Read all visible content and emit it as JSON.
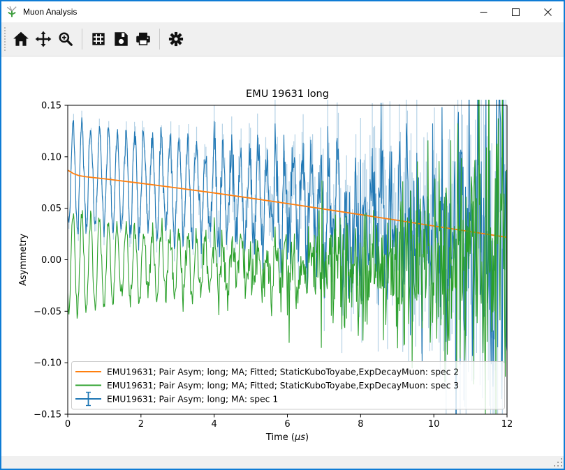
{
  "window": {
    "title": "Muon Analysis",
    "controls": {
      "minimize": "minimize",
      "maximize": "maximize",
      "close": "close"
    }
  },
  "toolbar": {
    "buttons": [
      "home",
      "pan",
      "zoom",
      "subplots",
      "save",
      "print",
      "customize"
    ]
  },
  "statusbar": {
    "message": ""
  },
  "chart_data": {
    "type": "line",
    "title": "EMU 19631 long",
    "xlabel": "Time (μs)",
    "ylabel": "Asymmetry",
    "xlim": [
      0,
      12
    ],
    "ylim": [
      -0.15,
      0.15
    ],
    "xticks": [
      0,
      2,
      4,
      6,
      8,
      10,
      12
    ],
    "yticks": [
      -0.15,
      -0.1,
      -0.05,
      0.0,
      0.05,
      0.1,
      0.15
    ],
    "grid": false,
    "legend_position": "lower left, wide box spanning plot",
    "colors": {
      "spec1": "#1f77b4",
      "spec2": "#ff7f0e",
      "spec3": "#2ca02c",
      "errorbar": "rgba(31,119,180,0.33)",
      "axes": "#000000",
      "legend_border": "#cccccc"
    },
    "series": [
      {
        "name": "EMU19631; Pair Asym; long; MA; Fitted; StaticKuboToyabe,ExpDecayMuon: spec 2",
        "color": "#ff7f0e",
        "kind": "fit-curve",
        "points": [
          [
            0,
            0.087
          ],
          [
            0.15,
            0.0838
          ],
          [
            0.3,
            0.0818
          ],
          [
            0.5,
            0.0806
          ],
          [
            1,
            0.0786
          ],
          [
            2,
            0.0743
          ],
          [
            3,
            0.0697
          ],
          [
            4,
            0.0649
          ],
          [
            5,
            0.0598
          ],
          [
            6,
            0.0546
          ],
          [
            7,
            0.0492
          ],
          [
            8,
            0.0438
          ],
          [
            9,
            0.0383
          ],
          [
            10,
            0.0328
          ],
          [
            11,
            0.0273
          ],
          [
            12,
            0.0218
          ]
        ]
      },
      {
        "name": "EMU19631; Pair Asym; long; MA; Fitted; StaticKuboToyabe,ExpDecayMuon: spec 3",
        "color": "#2ca02c",
        "kind": "noisy-oscillation",
        "synthesis": {
          "seed": 7,
          "dt": 0.016,
          "t_max": 12,
          "baseline": -0.004,
          "osc_amplitude": 0.05,
          "osc_freq": 4.15,
          "osc_phase": 2.5,
          "amp_decay_time": 5.5,
          "noise_sigma0": 0.0042,
          "noise_growth_time": 4.0
        }
      },
      {
        "name": "EMU19631; Pair Asym; long; MA: spec 1",
        "color": "#1f77b4",
        "kind": "data-with-errorbars",
        "synthesis": {
          "seed": 42,
          "dt": 0.016,
          "t_max": 12,
          "baseline": "fit",
          "osc_amplitude": 0.05,
          "osc_freq": 4.15,
          "osc_phase": 2.5,
          "amp_decay_time": 40,
          "noise_sigma0": 0.0045,
          "noise_growth_time": 4.0,
          "errorbar_sigma0": 0.006,
          "errorbar_growth_time": 4.2,
          "errorbar_every": 2
        }
      }
    ],
    "legend": [
      {
        "label": "EMU19631; Pair Asym; long; MA; Fitted; StaticKuboToyabe,ExpDecayMuon: spec 2",
        "color": "#ff7f0e",
        "marker": "line"
      },
      {
        "label": "EMU19631; Pair Asym; long; MA; Fitted; StaticKuboToyabe,ExpDecayMuon: spec 3",
        "color": "#2ca02c",
        "marker": "line"
      },
      {
        "label": "EMU19631; Pair Asym; long; MA: spec 1",
        "color": "#1f77b4",
        "marker": "errorbar"
      }
    ]
  }
}
